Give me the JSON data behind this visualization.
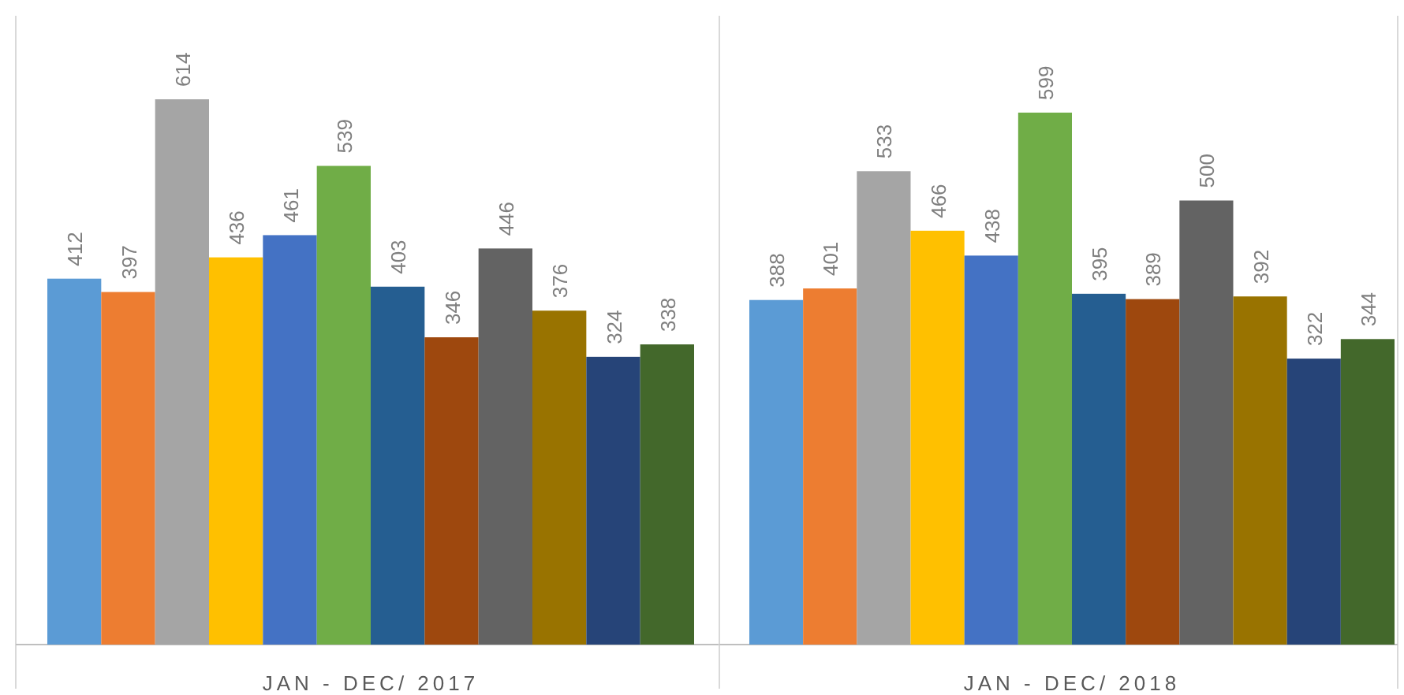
{
  "chart_data": [
    {
      "type": "bar",
      "xlabel": "JAN - DEC/  2017",
      "categories": [
        null,
        null,
        null,
        null,
        null,
        null,
        null,
        null,
        null,
        null,
        null,
        null
      ],
      "values": [
        412,
        397,
        614,
        436,
        461,
        539,
        403,
        346,
        446,
        376,
        324,
        338
      ],
      "colors": [
        "#5b9bd5",
        "#ed7d31",
        "#a5a5a5",
        "#ffc000",
        "#4472c4",
        "#70ad47",
        "#255e91",
        "#9e480e",
        "#636363",
        "#997300",
        "#264478",
        "#43682b"
      ],
      "data_labels": true
    },
    {
      "type": "bar",
      "xlabel": "JAN - DEC/  2018",
      "categories": [
        null,
        null,
        null,
        null,
        null,
        null,
        null,
        null,
        null,
        null,
        null,
        null
      ],
      "values": [
        388,
        401,
        533,
        466,
        438,
        599,
        395,
        389,
        500,
        392,
        322,
        344
      ],
      "colors": [
        "#5b9bd5",
        "#ed7d31",
        "#a5a5a5",
        "#ffc000",
        "#4472c4",
        "#70ad47",
        "#255e91",
        "#9e480e",
        "#636363",
        "#997300",
        "#264478",
        "#43682b"
      ],
      "data_labels": true
    }
  ]
}
